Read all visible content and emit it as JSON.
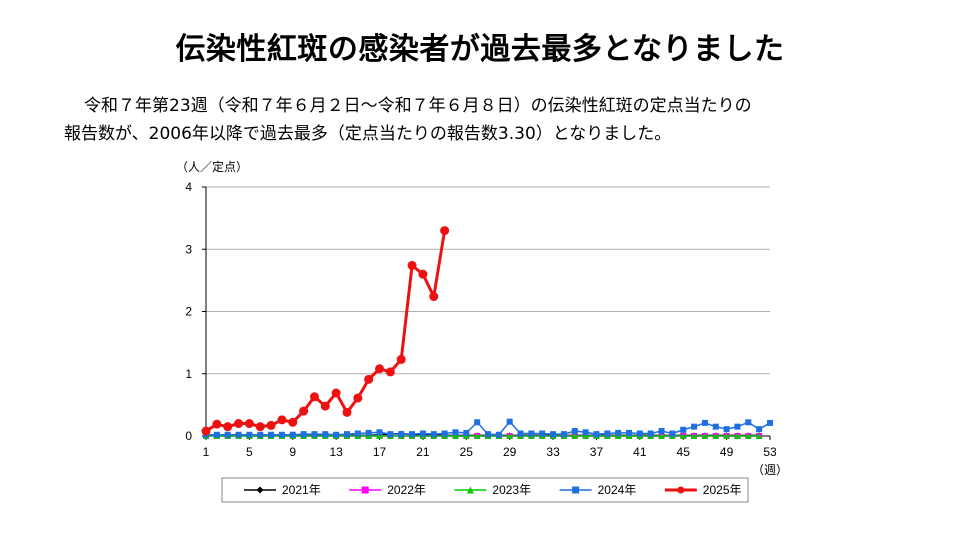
{
  "page": {
    "title": "伝染性紅斑の感染者が過去最多となりました",
    "description_line1": "令和７年第23週（令和７年６月２日～令和７年６月８日）の伝染性紅斑の定点当たりの",
    "description_line2": "報告数が、2006年以降で過去最多（定点当たりの報告数3.30）となりました。"
  },
  "chart_data": {
    "type": "line",
    "ylabel": "（人／定点）",
    "xlabel": "（週）",
    "xlim": [
      1,
      53
    ],
    "ylim": [
      0,
      4
    ],
    "xticks": [
      1,
      5,
      9,
      13,
      17,
      21,
      25,
      29,
      33,
      37,
      41,
      45,
      49,
      53
    ],
    "yticks": [
      0,
      1,
      2,
      3,
      4
    ],
    "grid": true,
    "legend_position": "bottom",
    "series": [
      {
        "name": "2021年",
        "color": "#000000",
        "marker": "diamond",
        "values": [
          0.01,
          0.01,
          0.01,
          0.01,
          0.01,
          0.01,
          0.01,
          0.01,
          0.01,
          0.01,
          0.01,
          0.01,
          0.01,
          0.01,
          0.01,
          0.01,
          0.02,
          0.03,
          0.04,
          0.02,
          0.01,
          0.02,
          0.01,
          0.01,
          0.01,
          0.01,
          0.01,
          0.01,
          0.01,
          0.01,
          0.01,
          0.01,
          0.01,
          0.01,
          0.01,
          0.01,
          0.01,
          0.01,
          0.01,
          0.01,
          0.01,
          0.01,
          0.01,
          0.01,
          0.01,
          0.01,
          0.01,
          0.01,
          0.01,
          0.01,
          0.01,
          0.01
        ]
      },
      {
        "name": "2022年",
        "color": "#ff00ff",
        "marker": "square",
        "values": [
          0,
          0,
          0,
          0,
          0,
          0,
          0,
          0,
          0,
          0,
          0,
          0,
          0,
          0,
          0,
          0,
          0,
          0,
          0,
          0,
          0,
          0,
          0,
          0,
          0,
          0,
          0,
          0,
          0,
          0,
          0,
          0,
          0,
          0,
          0,
          0,
          0,
          0,
          0,
          0,
          0,
          0,
          0,
          0,
          0,
          0,
          0,
          0,
          0,
          0,
          0,
          0
        ]
      },
      {
        "name": "2023年",
        "color": "#00cc00",
        "marker": "triangle",
        "values": [
          0,
          0,
          0,
          0,
          0,
          0,
          0,
          0,
          0,
          0,
          0,
          0,
          0,
          0,
          0,
          0,
          0,
          0,
          0,
          0,
          0,
          0,
          0,
          0,
          0,
          0,
          0,
          0,
          0,
          0,
          0,
          0,
          0,
          0,
          0,
          0,
          0,
          0,
          0,
          0,
          0,
          0,
          0,
          0,
          0,
          0,
          0,
          0,
          0,
          0,
          0,
          0
        ]
      },
      {
        "name": "2024年",
        "color": "#1f6fe0",
        "marker": "square",
        "values": [
          0.02,
          0.02,
          0.02,
          0.02,
          0.02,
          0.02,
          0.02,
          0.02,
          0.02,
          0.03,
          0.03,
          0.03,
          0.02,
          0.03,
          0.04,
          0.05,
          0.06,
          0.03,
          0.03,
          0.03,
          0.04,
          0.03,
          0.04,
          0.06,
          0.05,
          0.22,
          0.03,
          0.02,
          0.23,
          0.04,
          0.04,
          0.04,
          0.03,
          0.03,
          0.08,
          0.06,
          0.03,
          0.04,
          0.05,
          0.05,
          0.04,
          0.04,
          0.08,
          0.04,
          0.1,
          0.15,
          0.21,
          0.15,
          0.11,
          0.15,
          0.22,
          0.11,
          0.21
        ]
      },
      {
        "name": "2025年",
        "color": "#ee1111",
        "marker": "circle",
        "values": [
          0.08,
          0.19,
          0.15,
          0.2,
          0.2,
          0.15,
          0.17,
          0.26,
          0.22,
          0.4,
          0.63,
          0.48,
          0.69,
          0.38,
          0.61,
          0.91,
          1.08,
          1.03,
          1.23,
          2.74,
          2.6,
          2.24,
          3.3
        ]
      }
    ]
  }
}
